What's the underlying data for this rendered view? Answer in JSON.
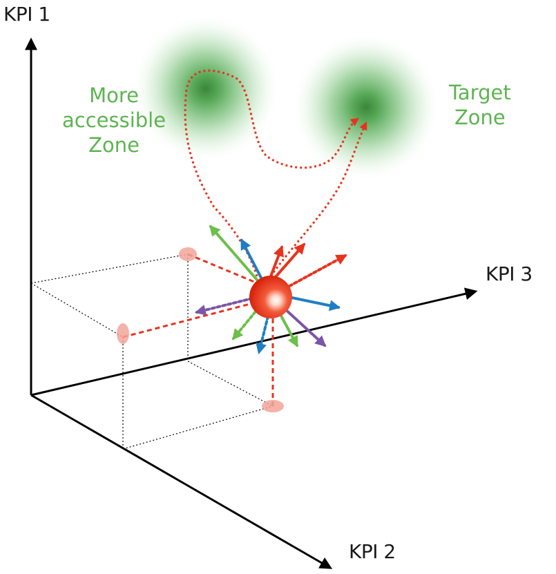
{
  "axes": {
    "kpi1": "KPI 1",
    "kpi2": "KPI 2",
    "kpi3": "KPI 3"
  },
  "zones": {
    "accessible": {
      "line1": "More",
      "line2": "accessible",
      "line3": "Zone"
    },
    "target": {
      "line1": "Target",
      "line2": "Zone"
    }
  },
  "colors": {
    "axis": "#000000",
    "zone_text": "#5cb450",
    "zone_glow": "#2f9a2f",
    "sphere": "#e8321c",
    "path": "#e8321c",
    "arrow_green": "#6cbf4a",
    "arrow_blue": "#1f7ec4",
    "arrow_purple": "#7b55a8",
    "arrow_red": "#e8321c"
  },
  "icons": {
    "current_state": "red-sphere",
    "projections": "pink-ellipse-markers",
    "directions": "multicolor-arrows"
  }
}
